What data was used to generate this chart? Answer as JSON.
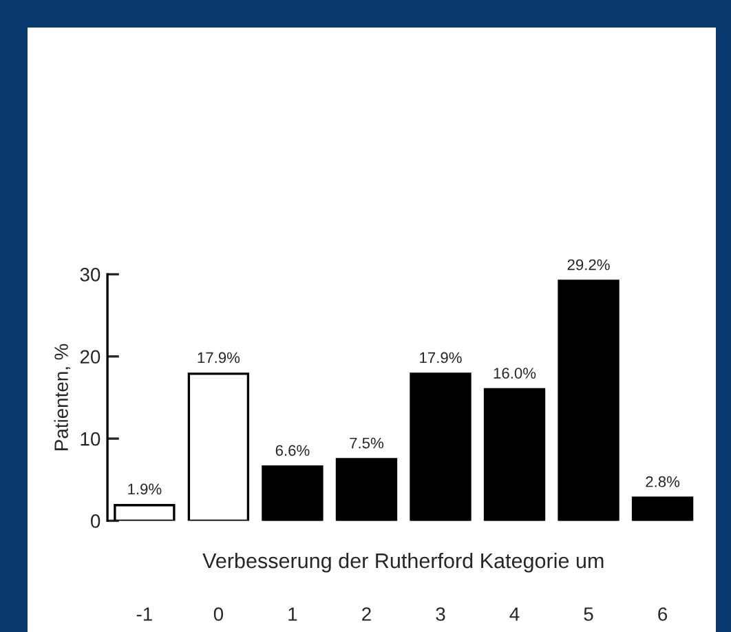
{
  "chart_data": {
    "type": "bar",
    "xlabel": "Verbesserung der Rutherford Kategorie um",
    "ylabel": "Patienten, %",
    "categories": [
      "-1",
      "0",
      "1",
      "2",
      "3",
      "4",
      "5",
      "6"
    ],
    "values": [
      1.9,
      17.9,
      6.6,
      7.5,
      17.9,
      16.0,
      29.2,
      2.8
    ],
    "colors": [
      "#ffffff",
      "#ffffff",
      "#000000",
      "#000000",
      "#000000",
      "#000000",
      "#000000",
      "#000000"
    ],
    "value_labels": [
      "1.9%",
      "17.9%",
      "6.6%",
      "7.5%",
      "17.9%",
      "16.0%",
      "29.2%",
      "2.8%"
    ],
    "ylim": [
      0,
      30
    ],
    "yticks": [
      0,
      10,
      20,
      30
    ]
  }
}
